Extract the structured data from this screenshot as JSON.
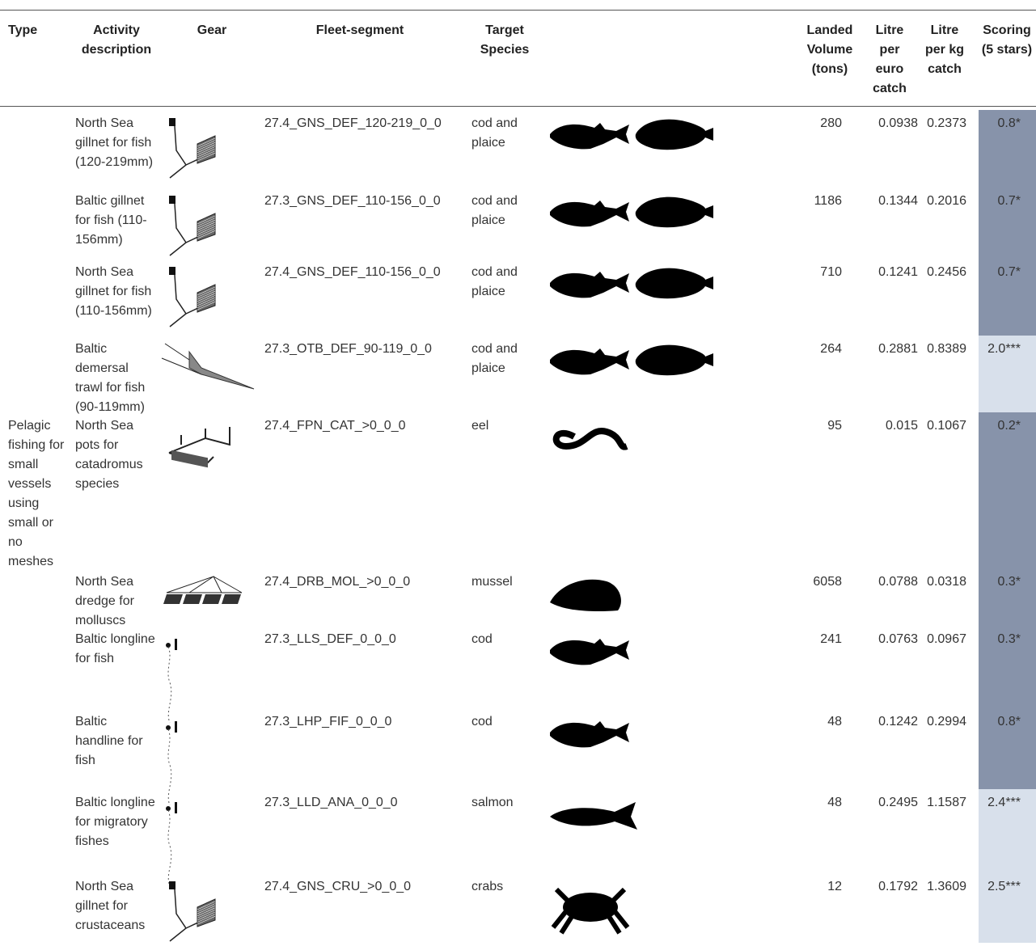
{
  "table": {
    "headers": [
      "Type",
      "Activity description",
      "Gear",
      "Fleet-segment",
      "Target Species",
      "Landed Volume (tons)",
      "Litre per euro catch",
      "Litre per kg catch",
      "Scoring (5 stars)"
    ],
    "rows": [
      {
        "activity": "North Sea gillnet for fish (120-219mm)",
        "fleet": "27.4_GNS_DEF_120-219_0_0",
        "target": "cod and plaice",
        "landed": 280,
        "euro": 0.0938,
        "kg": 0.2373,
        "score": "0.8*",
        "score_color": "#8793aa"
      },
      {
        "activity": "Baltic gillnet for fish (110-156mm)",
        "fleet": "27.3_GNS_DEF_110-156_0_0",
        "target": "cod and plaice",
        "landed": 1186,
        "euro": 0.1344,
        "kg": 0.2016,
        "score": "0.7*",
        "score_color": "#8793aa"
      },
      {
        "activity": "North Sea gillnet for fish (110-156mm)",
        "fleet": "27.4_GNS_DEF_110-156_0_0",
        "target": "cod and plaice",
        "landed": 710,
        "euro": 0.1241,
        "kg": 0.2456,
        "score": "0.7*",
        "score_color": "#8793aa"
      },
      {
        "activity": "Baltic demersal trawl for fish (90-119mm)",
        "fleet": "27.3_OTB_DEF_90-119_0_0",
        "target": "cod and plaice",
        "landed": 264,
        "euro": 0.2881,
        "kg": 0.8389,
        "score": "2.0***",
        "score_color": "#d8e0eb"
      },
      {
        "type": "Pelagic fishing for small vessels using small or no meshes",
        "activity": "North Sea pots for catadromus species",
        "fleet": "27.4_FPN_CAT_>0_0_0",
        "target": "eel",
        "landed": 95,
        "euro": 0.015,
        "kg": 0.1067,
        "score": "0.2*",
        "score_color": "#8793aa"
      },
      {
        "activity": "North Sea dredge for molluscs",
        "fleet": "27.4_DRB_MOL_>0_0_0",
        "target": "mussel",
        "landed": 6058,
        "euro": 0.0788,
        "kg": 0.0318,
        "score": "0.3*",
        "score_color": "#8793aa"
      },
      {
        "activity": "Baltic longline for fish",
        "fleet": "27.3_LLS_DEF_0_0_0",
        "target": "cod",
        "landed": 241,
        "euro": 0.0763,
        "kg": 0.0967,
        "score": "0.3*",
        "score_color": "#8793aa"
      },
      {
        "activity": "Baltic handline for fish",
        "fleet": "27.3_LHP_FIF_0_0_0",
        "target": "cod",
        "landed": 48,
        "euro": 0.1242,
        "kg": 0.2994,
        "score": "0.8*",
        "score_color": "#8793aa"
      },
      {
        "activity": "Baltic longline for migratory fishes",
        "fleet": "27.3_LLD_ANA_0_0_0",
        "target": "salmon",
        "landed": 48,
        "euro": 0.2495,
        "kg": 1.1587,
        "score": "2.4***",
        "score_color": "#d8e0eb"
      },
      {
        "activity": "North Sea gillnet for crustaceans",
        "fleet": "27.4_GNS_CRU_>0_0_0",
        "target": "crabs",
        "landed": 12,
        "euro": 0.1792,
        "kg": 1.3609,
        "score": "2.5***",
        "score_color": "#d8e0eb"
      }
    ]
  }
}
